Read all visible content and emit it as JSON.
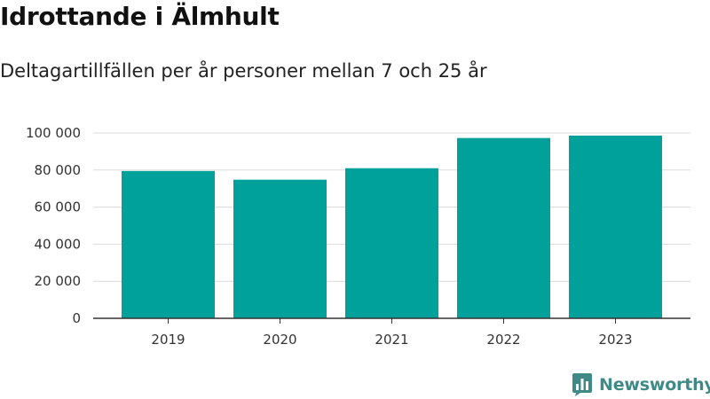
{
  "title": "Idrottande i Älmhult",
  "subtitle": "Deltagartillfällen per år personer mellan 7 och 25 år",
  "brand": {
    "name": "Newsworthy",
    "icon": "newsworthy-logo-icon",
    "color": "#3f8a86"
  },
  "chart_data": {
    "type": "bar",
    "categories": [
      "2019",
      "2020",
      "2021",
      "2022",
      "2023"
    ],
    "values": [
      79500,
      74800,
      81000,
      97300,
      98600
    ],
    "ylim": [
      0,
      100000
    ],
    "yticks": [
      0,
      20000,
      40000,
      60000,
      80000,
      100000
    ],
    "ytick_labels": [
      "0",
      "20 000",
      "40 000",
      "60 000",
      "80 000",
      "100 000"
    ],
    "xlabel": "",
    "ylabel": "",
    "grid": true,
    "bar_color": "#00a19a",
    "grid_color": "#d9d9d9",
    "axis_color": "#333333"
  }
}
